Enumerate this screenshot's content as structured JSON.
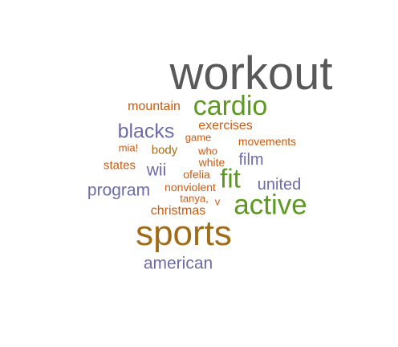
{
  "word_cloud": {
    "colors": {
      "gray": "#595959",
      "green": "#5c9a1f",
      "orange": "#cc5a10",
      "purple": "#6d6aa8",
      "brown": "#a06c1a"
    },
    "words": [
      {
        "id": "workout",
        "text": "workout",
        "color": "gray"
      },
      {
        "id": "cardio",
        "text": "cardio",
        "color": "green"
      },
      {
        "id": "mountain",
        "text": "mountain",
        "color": "orange"
      },
      {
        "id": "blacks",
        "text": "blacks",
        "color": "purple"
      },
      {
        "id": "exercises",
        "text": "exercises",
        "color": "orange"
      },
      {
        "id": "game",
        "text": "game",
        "color": "orange"
      },
      {
        "id": "movements",
        "text": "movements",
        "color": "orange"
      },
      {
        "id": "mia",
        "text": "mia!",
        "color": "orange"
      },
      {
        "id": "body",
        "text": "body",
        "color": "brown"
      },
      {
        "id": "who",
        "text": "who",
        "color": "orange"
      },
      {
        "id": "film",
        "text": "film",
        "color": "purple"
      },
      {
        "id": "states",
        "text": "states",
        "color": "orange"
      },
      {
        "id": "wii",
        "text": "wii",
        "color": "purple"
      },
      {
        "id": "white",
        "text": "white",
        "color": "orange"
      },
      {
        "id": "ofelia",
        "text": "ofelia",
        "color": "orange"
      },
      {
        "id": "fit",
        "text": "fit",
        "color": "green"
      },
      {
        "id": "united",
        "text": "united",
        "color": "purple"
      },
      {
        "id": "program",
        "text": "program",
        "color": "purple"
      },
      {
        "id": "nonviolent",
        "text": "nonviolent",
        "color": "orange"
      },
      {
        "id": "tanya",
        "text": "tanya,",
        "color": "orange"
      },
      {
        "id": "v",
        "text": "v",
        "color": "orange"
      },
      {
        "id": "active",
        "text": "active",
        "color": "green"
      },
      {
        "id": "christmas",
        "text": "christmas",
        "color": "orange"
      },
      {
        "id": "sports",
        "text": "sports",
        "color": "brown"
      },
      {
        "id": "american",
        "text": "american",
        "color": "purple"
      }
    ]
  }
}
